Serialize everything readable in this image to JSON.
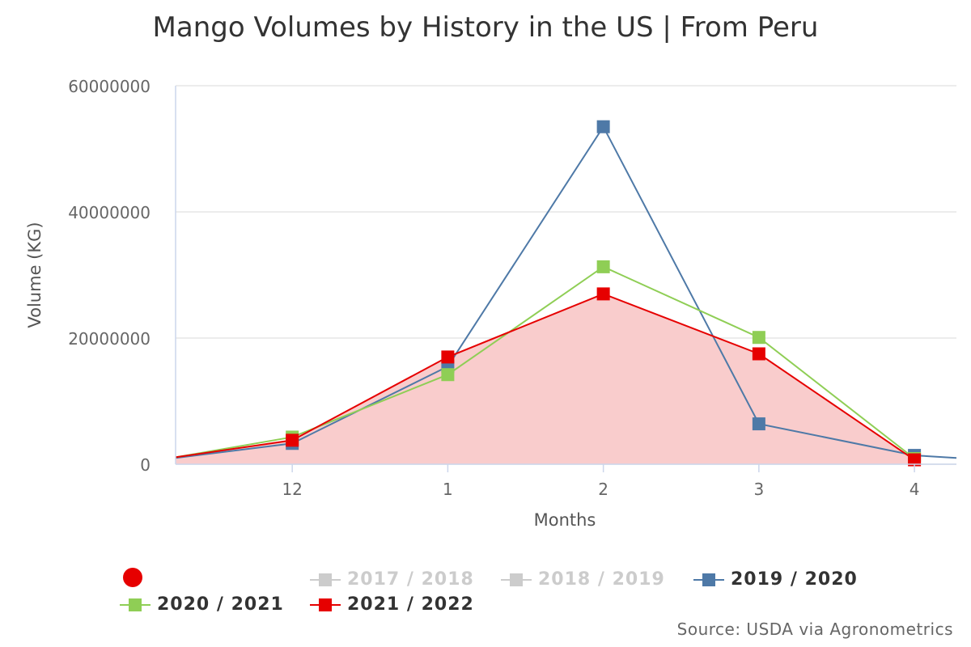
{
  "chart_data": {
    "type": "area",
    "title": "Mango Volumes by History in the US | From Peru",
    "xlabel": "Months",
    "ylabel": "Volume (KG)",
    "categories": [
      "12",
      "1",
      "2",
      "3",
      "4"
    ],
    "x_extent": [
      -0.75,
      4.27
    ],
    "ylim": [
      0,
      60000000
    ],
    "yticks": [
      0,
      20000000,
      40000000,
      60000000
    ],
    "ytick_labels": [
      "0",
      "20000000",
      "40000000",
      "60000000"
    ],
    "grid": true,
    "legend_position": "bottom",
    "series": [
      {
        "name": "2017 / 2018",
        "visible": false,
        "color": "#cccccc",
        "x": [],
        "values": []
      },
      {
        "name": "2018 / 2019",
        "visible": false,
        "color": "#cccccc",
        "x": [],
        "values": []
      },
      {
        "name": "2019 / 2020",
        "visible": true,
        "color": "#4e79a7",
        "style": "line",
        "x": [
          -0.75,
          0,
          1,
          2,
          3,
          4,
          4.27
        ],
        "values": [
          1000000,
          3300000,
          15500000,
          53500000,
          6400000,
          1400000,
          1000000
        ],
        "markers": [
          1,
          2,
          3,
          4,
          5
        ]
      },
      {
        "name": "2020 / 2021",
        "visible": true,
        "color": "#8fce55",
        "style": "line",
        "x": [
          -0.75,
          0,
          1,
          2,
          3,
          4
        ],
        "values": [
          1100000,
          4300000,
          14200000,
          31300000,
          20100000,
          900000
        ],
        "markers": [
          1,
          2,
          3,
          4,
          5
        ]
      },
      {
        "name": "2021 / 2022",
        "visible": true,
        "color": "#e60000",
        "fill": "#f9cccc",
        "style": "area",
        "x": [
          -0.75,
          0,
          1,
          2,
          3,
          4
        ],
        "values": [
          1100000,
          3800000,
          17000000,
          27000000,
          17500000,
          700000
        ],
        "markers": [
          1,
          2,
          3,
          4,
          5
        ]
      }
    ]
  },
  "legend": {
    "dot_color": "#e60000",
    "items": [
      {
        "label": "2017 / 2018",
        "color": "#cccccc",
        "disabled": true
      },
      {
        "label": "2018 / 2019",
        "color": "#cccccc",
        "disabled": true
      },
      {
        "label": "2019 / 2020",
        "color": "#4e79a7",
        "disabled": false
      },
      {
        "label": "2020 / 2021",
        "color": "#8fce55",
        "disabled": false
      },
      {
        "label": "2021 / 2022",
        "color": "#e60000",
        "disabled": false
      }
    ]
  },
  "credit": "Source: USDA via Agronometrics"
}
